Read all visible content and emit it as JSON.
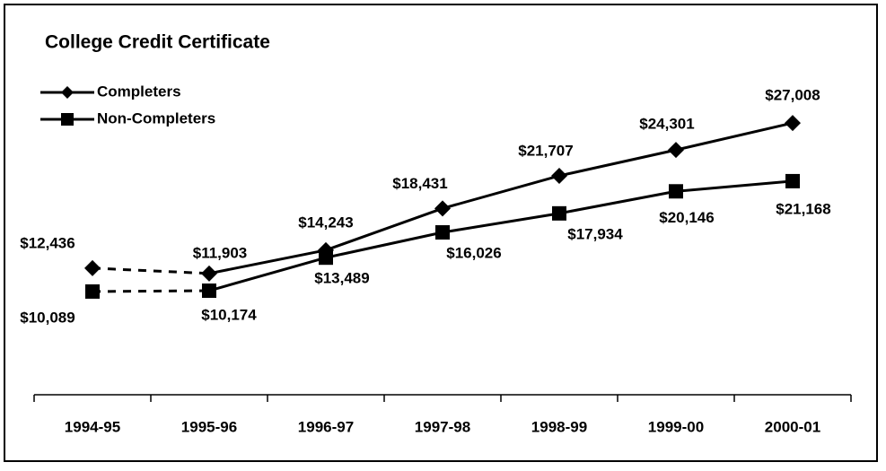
{
  "chart_data": {
    "type": "line",
    "title": "College Credit Certificate",
    "categories": [
      "1994-95",
      "1995-96",
      "1996-97",
      "1997-98",
      "1998-99",
      "1999-00",
      "2000-01"
    ],
    "series": [
      {
        "name": "Completers",
        "color": "#000000",
        "marker": "diamond",
        "values": [
          12436,
          11903,
          14243,
          18431,
          21707,
          24301,
          27008
        ],
        "value_labels": [
          "$12,436",
          "$11,903",
          "$14,243",
          "$18,431",
          "$21,707",
          "$24,301",
          "$27,008"
        ]
      },
      {
        "name": "Non-Completers",
        "color": "#000000",
        "marker": "square",
        "values": [
          10089,
          10174,
          13489,
          16026,
          17934,
          20146,
          21168
        ],
        "value_labels": [
          "$10,089",
          "$10,174",
          "$13,489",
          "$16,026",
          "$17,934",
          "$20,146",
          "$21,168"
        ]
      }
    ],
    "dashed_to_index": 1,
    "ylim": [
      0,
      38000
    ],
    "legend": "top-left"
  }
}
